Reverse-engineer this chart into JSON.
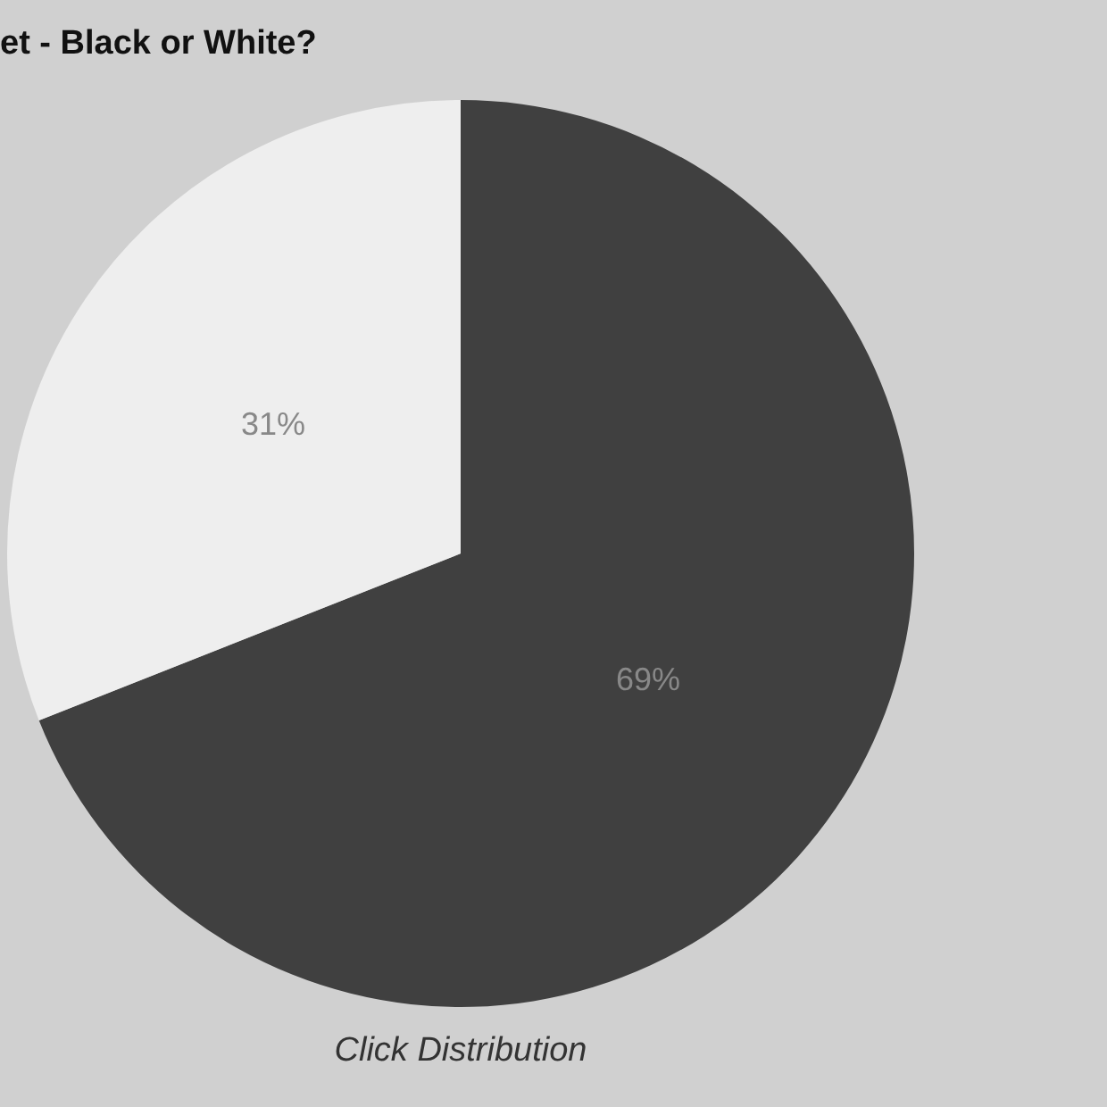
{
  "chart_data": {
    "type": "pie",
    "title": "et - Black or White?",
    "categories": [
      null,
      null
    ],
    "values": [
      69,
      31
    ],
    "colors": [
      "#404040",
      "#eeeeee"
    ],
    "value_labels": [
      "69%",
      "31%"
    ],
    "annotations": [
      "Click Distribution"
    ],
    "legend": false
  }
}
